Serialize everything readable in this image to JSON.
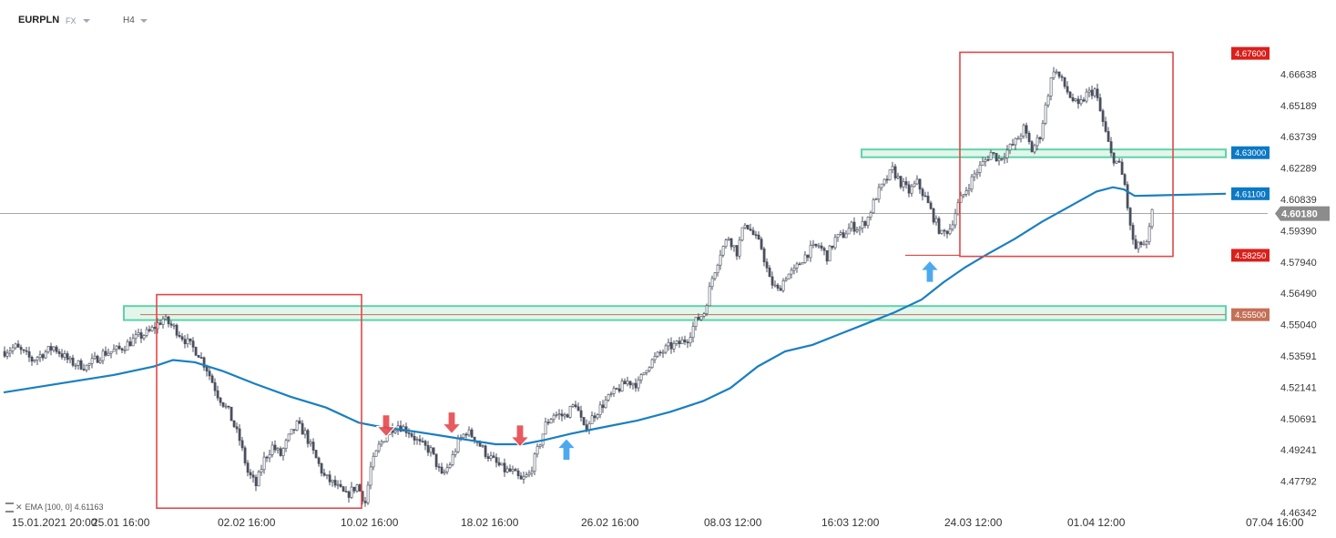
{
  "header": {
    "symbol": "EURPLN",
    "feed": "FX",
    "timeframe": "H4"
  },
  "indicator": {
    "label": "EMA",
    "params": "[100, 0]",
    "value": "4.61163",
    "color": "#1a7fc1"
  },
  "colors": {
    "bull": "#ffffff",
    "bear": "#4a4f5c",
    "wick": "#4a4f5c",
    "ema": "#1a7fc1",
    "box": "#e04848",
    "zone_fill": "#d8f3e6",
    "zone_stroke": "#5fd3a8",
    "label_red": "#d9201c",
    "label_blue": "#0b79c4",
    "label_brown": "#c47057",
    "label_gray": "#8c8c8c",
    "arrow_up": "#3aa0ec",
    "arrow_down": "#e5484d"
  },
  "chart_data": {
    "type": "candlestick",
    "title": "EURPLN",
    "y_ticks": [
      "4.66638",
      "4.65189",
      "4.63739",
      "4.62289",
      "4.60839",
      "4.59390",
      "4.57940",
      "4.56490",
      "4.55040",
      "4.53591",
      "4.52141",
      "4.50691",
      "4.49241",
      "4.47792",
      "4.46342"
    ],
    "ylim": [
      4.4634,
      4.6771
    ],
    "x_ticks": [
      "15.01.2021 20:00",
      "25.01 16:00",
      "02.02 16:00",
      "10.02 16:00",
      "18.02 16:00",
      "26.02 16:00",
      "08.03 12:00",
      "16:03 12:00",
      "24.03 12:00",
      "01.04 12:00",
      "07.04 16:00"
    ],
    "x_tick_bars": [
      3,
      47,
      93,
      138,
      182,
      226,
      271,
      314,
      359,
      404,
      450
    ],
    "n_bars": 470,
    "current_price": "4.60180",
    "anchors": [
      [
        0,
        4.538
      ],
      [
        4,
        4.54
      ],
      [
        10,
        4.534
      ],
      [
        18,
        4.54
      ],
      [
        24,
        4.533
      ],
      [
        30,
        4.531
      ],
      [
        36,
        4.537
      ],
      [
        42,
        4.539
      ],
      [
        48,
        4.544
      ],
      [
        53,
        4.547
      ],
      [
        58,
        4.553
      ],
      [
        62,
        4.549
      ],
      [
        67,
        4.542
      ],
      [
        71,
        4.537
      ],
      [
        74,
        4.53
      ],
      [
        78,
        4.518
      ],
      [
        82,
        4.51
      ],
      [
        86,
        4.497
      ],
      [
        89,
        4.482
      ],
      [
        92,
        4.476
      ],
      [
        95,
        4.488
      ],
      [
        98,
        4.494
      ],
      [
        101,
        4.49
      ],
      [
        104,
        4.498
      ],
      [
        107,
        4.504
      ],
      [
        110,
        4.5
      ],
      [
        113,
        4.491
      ],
      [
        117,
        4.48
      ],
      [
        121,
        4.476
      ],
      [
        125,
        4.471
      ],
      [
        129,
        4.476
      ],
      [
        132,
        4.468
      ],
      [
        134,
        4.484
      ],
      [
        137,
        4.494
      ],
      [
        141,
        4.502
      ],
      [
        144,
        4.504
      ],
      [
        148,
        4.501
      ],
      [
        152,
        4.495
      ],
      [
        156,
        4.492
      ],
      [
        160,
        4.48
      ],
      [
        163,
        4.486
      ],
      [
        166,
        4.496
      ],
      [
        169,
        4.501
      ],
      [
        172,
        4.498
      ],
      [
        176,
        4.491
      ],
      [
        180,
        4.486
      ],
      [
        183,
        4.483
      ],
      [
        186,
        4.482
      ],
      [
        189,
        4.478
      ],
      [
        192,
        4.481
      ],
      [
        195,
        4.492
      ],
      [
        198,
        4.504
      ],
      [
        201,
        4.509
      ],
      [
        205,
        4.508
      ],
      [
        209,
        4.514
      ],
      [
        212,
        4.502
      ],
      [
        216,
        4.509
      ],
      [
        220,
        4.515
      ],
      [
        224,
        4.52
      ],
      [
        228,
        4.524
      ],
      [
        232,
        4.523
      ],
      [
        235,
        4.531
      ],
      [
        239,
        4.536
      ],
      [
        243,
        4.54
      ],
      [
        246,
        4.541
      ],
      [
        250,
        4.544
      ],
      [
        253,
        4.552
      ],
      [
        256,
        4.556
      ],
      [
        259,
        4.572
      ],
      [
        262,
        4.584
      ],
      [
        265,
        4.591
      ],
      [
        268,
        4.584
      ],
      [
        271,
        4.598
      ],
      [
        274,
        4.592
      ],
      [
        277,
        4.586
      ],
      [
        280,
        4.571
      ],
      [
        283,
        4.566
      ],
      [
        286,
        4.573
      ],
      [
        289,
        4.575
      ],
      [
        292,
        4.581
      ],
      [
        295,
        4.585
      ],
      [
        298,
        4.587
      ],
      [
        301,
        4.582
      ],
      [
        304,
        4.59
      ],
      [
        307,
        4.592
      ],
      [
        310,
        4.596
      ],
      [
        313,
        4.595
      ],
      [
        316,
        4.6
      ],
      [
        319,
        4.61
      ],
      [
        322,
        4.616
      ],
      [
        325,
        4.622
      ],
      [
        328,
        4.616
      ],
      [
        331,
        4.612
      ],
      [
        334,
        4.616
      ],
      [
        337,
        4.609
      ],
      [
        340,
        4.6
      ],
      [
        343,
        4.592
      ],
      [
        346,
        4.595
      ],
      [
        349,
        4.606
      ],
      [
        352,
        4.613
      ],
      [
        355,
        4.62
      ],
      [
        358,
        4.625
      ],
      [
        361,
        4.63
      ],
      [
        364,
        4.627
      ],
      [
        367,
        4.631
      ],
      [
        370,
        4.635
      ],
      [
        373,
        4.641
      ],
      [
        376,
        4.631
      ],
      [
        379,
        4.638
      ],
      [
        382,
        4.658
      ],
      [
        384,
        4.669
      ],
      [
        387,
        4.663
      ],
      [
        390,
        4.656
      ],
      [
        393,
        4.651
      ],
      [
        396,
        4.657
      ],
      [
        399,
        4.659
      ],
      [
        402,
        4.644
      ],
      [
        405,
        4.629
      ],
      [
        408,
        4.624
      ],
      [
        410,
        4.615
      ],
      [
        412,
        4.595
      ],
      [
        414,
        4.585
      ],
      [
        416,
        4.588
      ],
      [
        418,
        4.587
      ],
      [
        420,
        4.602
      ]
    ],
    "ema": {
      "label": "EMA [100, 0]",
      "value": 4.61163,
      "points": [
        [
          0,
          4.519
        ],
        [
          20,
          4.523
        ],
        [
          40,
          4.527
        ],
        [
          55,
          4.531
        ],
        [
          62,
          4.534
        ],
        [
          70,
          4.533
        ],
        [
          80,
          4.529
        ],
        [
          92,
          4.523
        ],
        [
          105,
          4.517
        ],
        [
          118,
          4.512
        ],
        [
          130,
          4.505
        ],
        [
          138,
          4.503
        ],
        [
          150,
          4.501
        ],
        [
          160,
          4.499
        ],
        [
          170,
          4.497
        ],
        [
          180,
          4.495
        ],
        [
          190,
          4.495
        ],
        [
          198,
          4.497
        ],
        [
          208,
          4.5
        ],
        [
          220,
          4.503
        ],
        [
          232,
          4.506
        ],
        [
          244,
          4.51
        ],
        [
          256,
          4.515
        ],
        [
          266,
          4.521
        ],
        [
          276,
          4.531
        ],
        [
          286,
          4.538
        ],
        [
          296,
          4.541
        ],
        [
          306,
          4.546
        ],
        [
          316,
          4.551
        ],
        [
          326,
          4.556
        ],
        [
          336,
          4.562
        ],
        [
          344,
          4.57
        ],
        [
          352,
          4.577
        ],
        [
          360,
          4.583
        ],
        [
          370,
          4.59
        ],
        [
          380,
          4.598
        ],
        [
          390,
          4.605
        ],
        [
          400,
          4.612
        ],
        [
          406,
          4.614
        ],
        [
          410,
          4.613
        ],
        [
          414,
          4.61
        ]
      ]
    },
    "levels": [
      {
        "price": 4.676,
        "label": "4.67600",
        "color": "red"
      },
      {
        "price": 4.63,
        "label": "4.63000",
        "color": "blue"
      },
      {
        "price": 4.611,
        "label": "4.61100",
        "color": "blue"
      },
      {
        "price": 4.5825,
        "label": "4.58250",
        "color": "red"
      },
      {
        "price": 4.555,
        "label": "4.55500",
        "color": "brown"
      }
    ],
    "zones": [
      {
        "from_bar": 44,
        "low": 4.5525,
        "high": 4.559
      },
      {
        "from_bar": 314,
        "low": 4.6279,
        "high": 4.6315
      }
    ],
    "boxes": [
      {
        "from_bar": 56,
        "to_bar": 131,
        "low": 4.4654,
        "high": 4.5643
      },
      {
        "from_bar": 350,
        "to_bar": 428,
        "low": 4.582,
        "high": 4.6765
      }
    ],
    "arrows": [
      {
        "bar": 140,
        "price": 4.5036,
        "dir": "down"
      },
      {
        "bar": 164,
        "price": 4.5049,
        "dir": "down"
      },
      {
        "bar": 189,
        "price": 4.4989,
        "dir": "down"
      },
      {
        "bar": 206,
        "price": 4.4926,
        "dir": "up"
      },
      {
        "bar": 339,
        "price": 4.575,
        "dir": "up"
      }
    ]
  }
}
